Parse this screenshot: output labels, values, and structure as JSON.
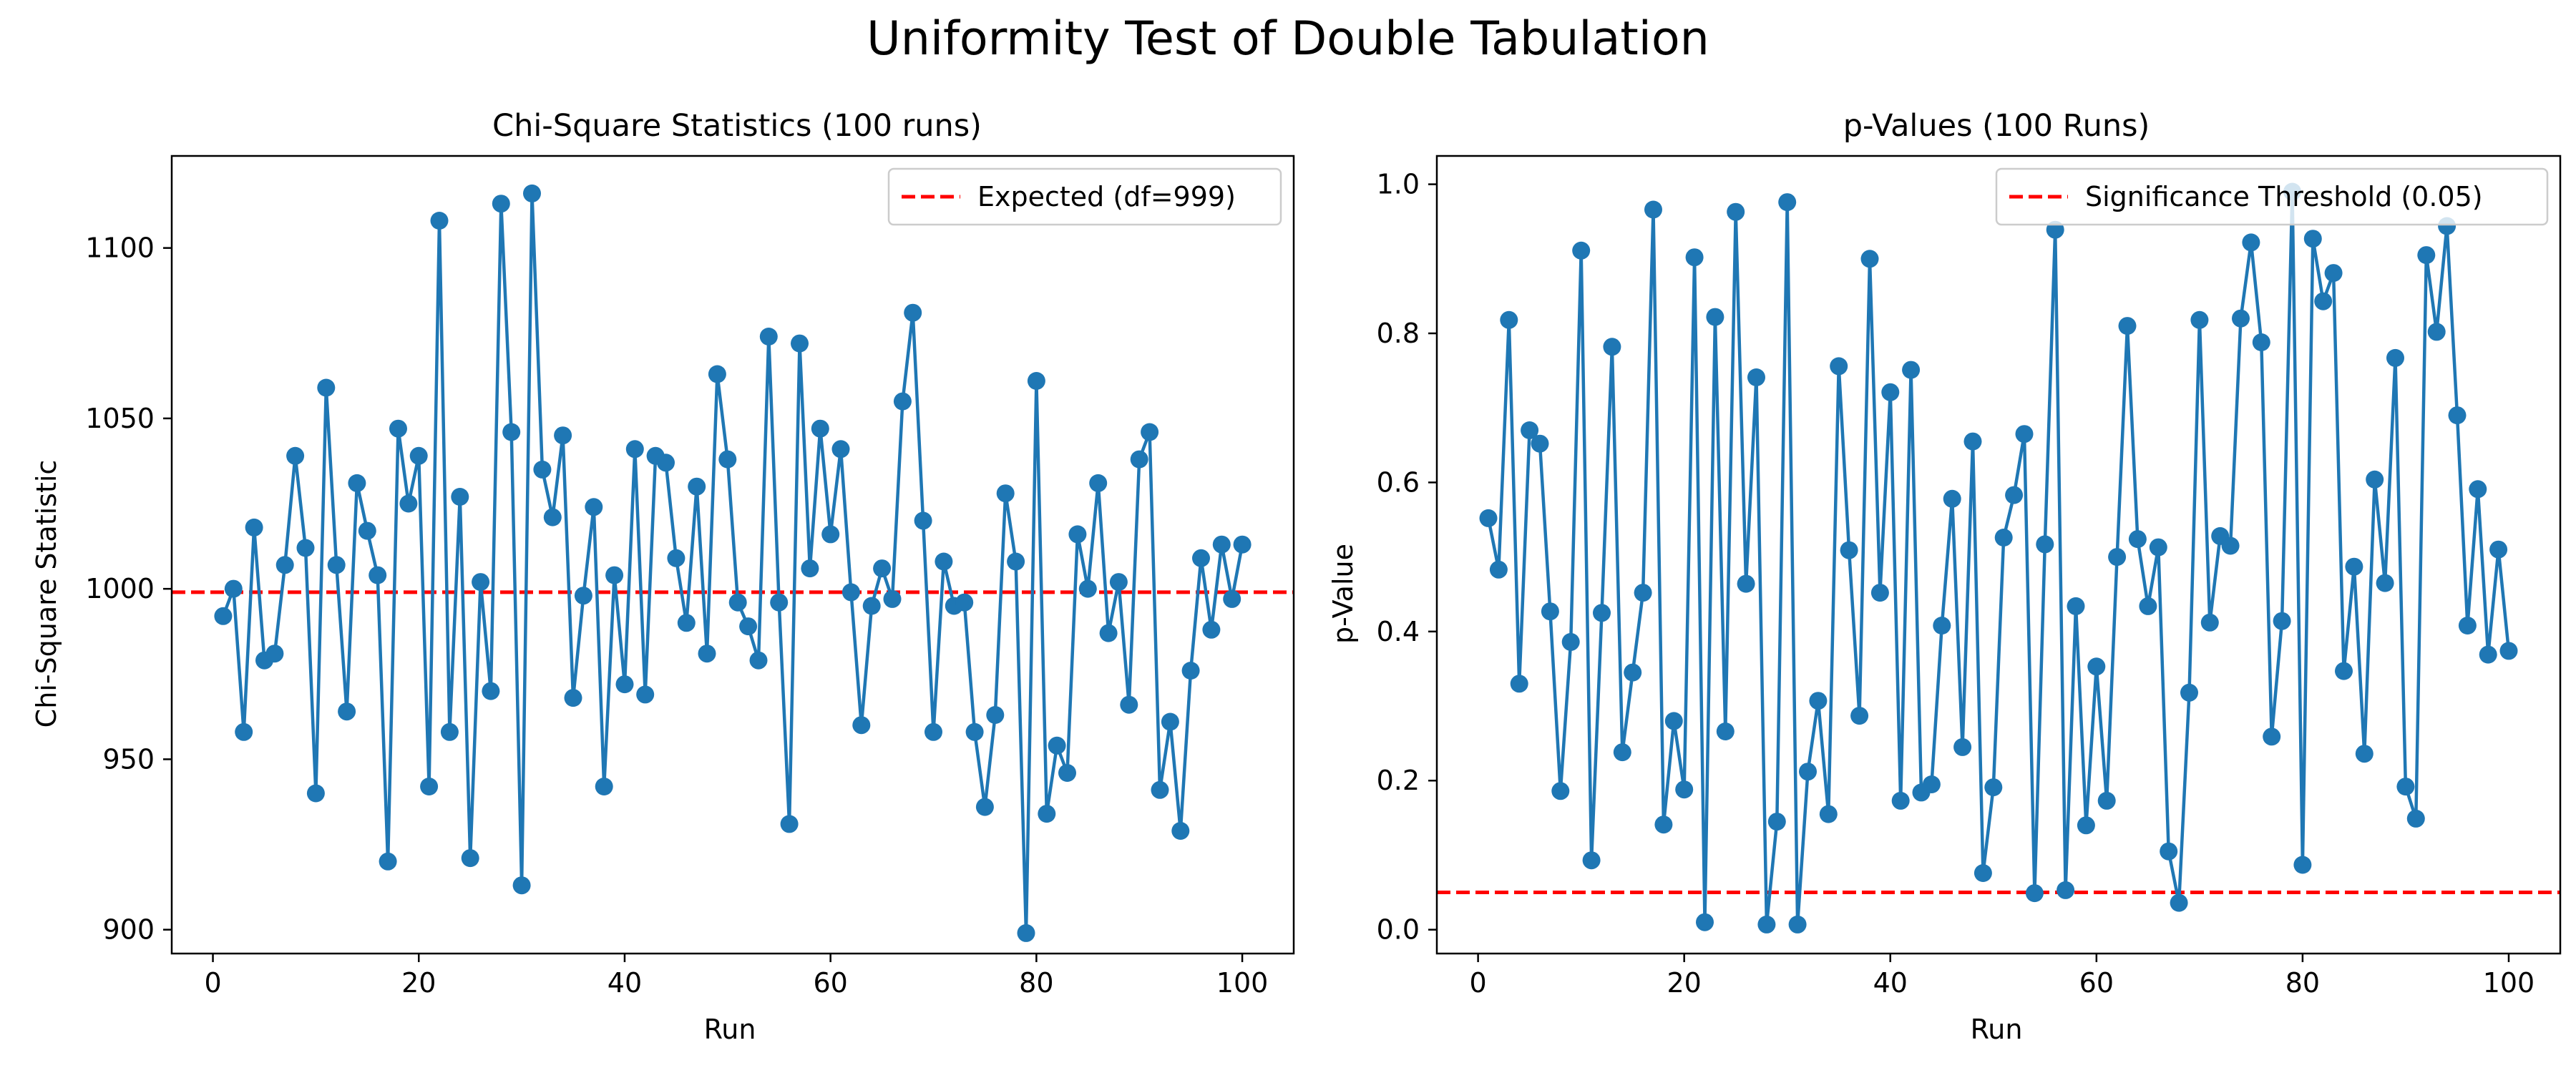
{
  "figure": {
    "suptitle": "Uniformity Test of Double Tabulation"
  },
  "colors": {
    "series": "#1f77b4",
    "reference_line": "#ff0000",
    "axes": "#000000",
    "legend_border": "#cccccc",
    "background": "#ffffff"
  },
  "chart_data": [
    {
      "type": "line",
      "title": "Chi-Square Statistics (100 runs)",
      "xlabel": "Run",
      "ylabel": "Chi-Square Statistic",
      "xlim": [
        -4,
        105
      ],
      "ylim": [
        893,
        1127
      ],
      "xticks": [
        0,
        20,
        40,
        60,
        80,
        100
      ],
      "yticks": [
        900,
        950,
        1000,
        1050,
        1100
      ],
      "grid": false,
      "markers": true,
      "legend_position": "upper right",
      "x": [
        1,
        2,
        3,
        4,
        5,
        6,
        7,
        8,
        9,
        10,
        11,
        12,
        13,
        14,
        15,
        16,
        17,
        18,
        19,
        20,
        21,
        22,
        23,
        24,
        25,
        26,
        27,
        28,
        29,
        30,
        31,
        32,
        33,
        34,
        35,
        36,
        37,
        38,
        39,
        40,
        41,
        42,
        43,
        44,
        45,
        46,
        47,
        48,
        49,
        50,
        51,
        52,
        53,
        54,
        55,
        56,
        57,
        58,
        59,
        60,
        61,
        62,
        63,
        64,
        65,
        66,
        67,
        68,
        69,
        70,
        71,
        72,
        73,
        74,
        75,
        76,
        77,
        78,
        79,
        80,
        81,
        82,
        83,
        84,
        85,
        86,
        87,
        88,
        89,
        90,
        91,
        92,
        93,
        94,
        95,
        96,
        97,
        98,
        99,
        100
      ],
      "values": [
        992,
        1000,
        958,
        1018,
        979,
        981,
        1007,
        1039,
        1012,
        940,
        1059,
        1007,
        964,
        1031,
        1017,
        1004,
        920,
        1047,
        1025,
        1039,
        942,
        1108,
        958,
        1027,
        921,
        1002,
        970,
        1113,
        1046,
        913,
        1116,
        1035,
        1021,
        1045,
        968,
        998,
        1024,
        942,
        1004,
        972,
        1041,
        969,
        1039,
        1037,
        1009,
        990,
        1030,
        981,
        1063,
        1038,
        996,
        989,
        979,
        1074,
        996,
        931,
        1072,
        1006,
        1047,
        1016,
        1041,
        999,
        960,
        995,
        1006,
        997,
        1055,
        1081,
        1020,
        958,
        1008,
        995,
        996,
        958,
        936,
        963,
        1028,
        1008,
        899,
        1061,
        934,
        954,
        946,
        1016,
        1000,
        1031,
        987,
        1002,
        966,
        1038,
        1046,
        941,
        961,
        929,
        976,
        1009,
        988,
        1013,
        997,
        1013
      ],
      "reference_lines": [
        {
          "y": 999,
          "label": "Expected (df=999)",
          "style": "dashed"
        }
      ]
    },
    {
      "type": "line",
      "title": "p-Values (100 Runs)",
      "xlabel": "Run",
      "ylabel": "p-Value",
      "xlim": [
        -4,
        105
      ],
      "ylim": [
        -0.032,
        1.038
      ],
      "xticks": [
        0,
        20,
        40,
        60,
        80,
        100
      ],
      "yticks": [
        0.0,
        0.2,
        0.4,
        0.6,
        0.8,
        1.0
      ],
      "ytick_labels": [
        "0.0",
        "0.2",
        "0.4",
        "0.6",
        "0.8",
        "1.0"
      ],
      "grid": false,
      "markers": true,
      "legend_position": "upper right",
      "x": [
        1,
        2,
        3,
        4,
        5,
        6,
        7,
        8,
        9,
        10,
        11,
        12,
        13,
        14,
        15,
        16,
        17,
        18,
        19,
        20,
        21,
        22,
        23,
        24,
        25,
        26,
        27,
        28,
        29,
        30,
        31,
        32,
        33,
        34,
        35,
        36,
        37,
        38,
        39,
        40,
        41,
        42,
        43,
        44,
        45,
        46,
        47,
        48,
        49,
        50,
        51,
        52,
        53,
        54,
        55,
        56,
        57,
        58,
        59,
        60,
        61,
        62,
        63,
        64,
        65,
        66,
        67,
        68,
        69,
        70,
        71,
        72,
        73,
        74,
        75,
        76,
        77,
        78,
        79,
        80,
        81,
        82,
        83,
        84,
        85,
        86,
        87,
        88,
        89,
        90,
        91,
        92,
        93,
        94,
        95,
        96,
        97,
        98,
        99,
        100
      ],
      "values": [
        0.552,
        0.483,
        0.818,
        0.33,
        0.67,
        0.652,
        0.427,
        0.186,
        0.386,
        0.911,
        0.093,
        0.425,
        0.782,
        0.238,
        0.345,
        0.452,
        0.966,
        0.141,
        0.28,
        0.188,
        0.902,
        0.01,
        0.822,
        0.266,
        0.963,
        0.464,
        0.741,
        0.007,
        0.145,
        0.976,
        0.007,
        0.212,
        0.307,
        0.155,
        0.756,
        0.509,
        0.287,
        0.9,
        0.452,
        0.721,
        0.173,
        0.751,
        0.184,
        0.195,
        0.408,
        0.578,
        0.245,
        0.655,
        0.076,
        0.191,
        0.526,
        0.583,
        0.665,
        0.049,
        0.517,
        0.939,
        0.053,
        0.434,
        0.14,
        0.353,
        0.173,
        0.5,
        0.81,
        0.524,
        0.434,
        0.513,
        0.105,
        0.036,
        0.318,
        0.818,
        0.412,
        0.528,
        0.515,
        0.82,
        0.922,
        0.788,
        0.259,
        0.414,
        0.99,
        0.087,
        0.927,
        0.843,
        0.881,
        0.347,
        0.487,
        0.236,
        0.604,
        0.465,
        0.767,
        0.192,
        0.149,
        0.905,
        0.802,
        0.944,
        0.69,
        0.408,
        0.591,
        0.369,
        0.51,
        0.374
      ],
      "reference_lines": [
        {
          "y": 0.05,
          "label": "Significance Threshold (0.05)",
          "style": "dashed"
        }
      ]
    }
  ]
}
